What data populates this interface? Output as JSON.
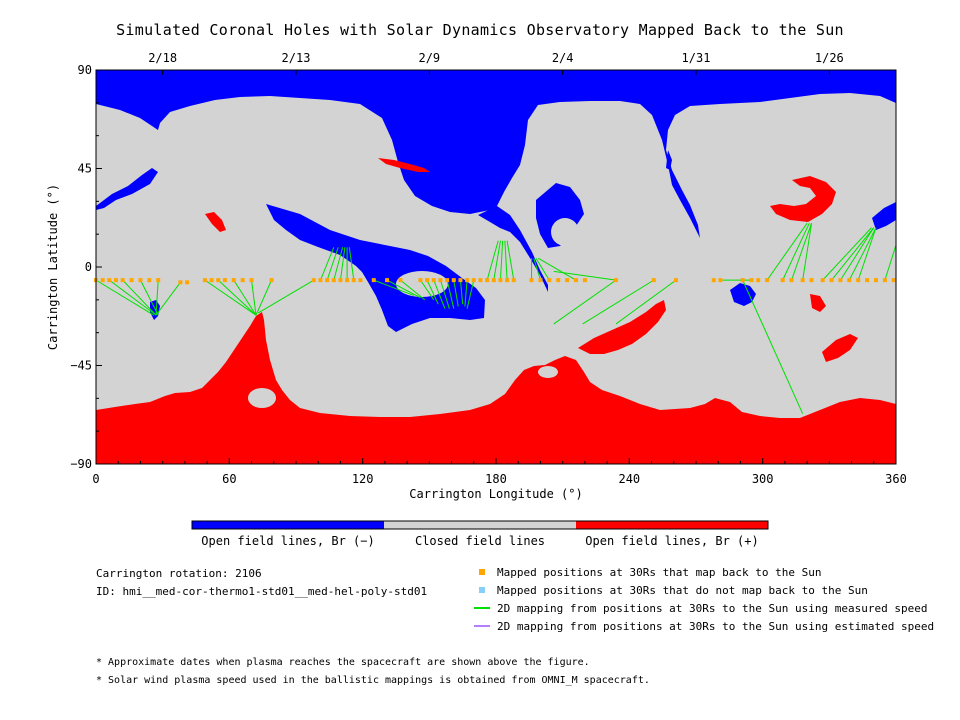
{
  "title": "Simulated Coronal Holes with Solar Dynamics Observatory Mapped Back to the Sun",
  "chart_data": {
    "type": "map",
    "xlabel": "Carrington Longitude (°)",
    "ylabel": "Carrington Latitude (°)",
    "xlim": [
      0,
      360
    ],
    "ylim": [
      -90,
      90
    ],
    "x_ticks": [
      "0",
      "60",
      "120",
      "180",
      "240",
      "300",
      "360"
    ],
    "y_ticks": [
      "90",
      "45",
      "0",
      "−45",
      "−90"
    ],
    "top_dates": [
      {
        "label": "2/18",
        "lon": 30
      },
      {
        "label": "2/13",
        "lon": 90
      },
      {
        "label": "2/9",
        "lon": 150
      },
      {
        "label": "2/4",
        "lon": 210
      },
      {
        "label": "1/31",
        "lon": 270
      },
      {
        "label": "1/26",
        "lon": 330
      }
    ],
    "regions": {
      "north_polar_open_negative": "blue",
      "south_polar_open_positive": "red",
      "closed": "lightgray"
    },
    "mapped_positions": [
      {
        "lon": 0,
        "lat": -6
      },
      {
        "lon": 3,
        "lat": -6
      },
      {
        "lon": 6,
        "lat": -6
      },
      {
        "lon": 9,
        "lat": -6
      },
      {
        "lon": 12,
        "lat": -6
      },
      {
        "lon": 16,
        "lat": -6
      },
      {
        "lon": 20,
        "lat": -6
      },
      {
        "lon": 24,
        "lat": -6
      },
      {
        "lon": 28,
        "lat": -6
      },
      {
        "lon": 38,
        "lat": -7
      },
      {
        "lon": 41,
        "lat": -7
      },
      {
        "lon": 49,
        "lat": -6
      },
      {
        "lon": 52,
        "lat": -6
      },
      {
        "lon": 55,
        "lat": -6
      },
      {
        "lon": 58,
        "lat": -6
      },
      {
        "lon": 62,
        "lat": -6
      },
      {
        "lon": 66,
        "lat": -6
      },
      {
        "lon": 70,
        "lat": -6
      },
      {
        "lon": 79,
        "lat": -6
      },
      {
        "lon": 98,
        "lat": -6
      },
      {
        "lon": 101,
        "lat": -6
      },
      {
        "lon": 104,
        "lat": -6
      },
      {
        "lon": 107,
        "lat": -6
      },
      {
        "lon": 110,
        "lat": -6
      },
      {
        "lon": 113,
        "lat": -6
      },
      {
        "lon": 116,
        "lat": -6
      },
      {
        "lon": 119,
        "lat": -6
      },
      {
        "lon": 125,
        "lat": -6
      },
      {
        "lon": 131,
        "lat": -6
      },
      {
        "lon": 137,
        "lat": -6
      },
      {
        "lon": 146,
        "lat": -6
      },
      {
        "lon": 149,
        "lat": -6
      },
      {
        "lon": 152,
        "lat": -6
      },
      {
        "lon": 155,
        "lat": -6
      },
      {
        "lon": 158,
        "lat": -6
      },
      {
        "lon": 161,
        "lat": -6
      },
      {
        "lon": 164,
        "lat": -6
      },
      {
        "lon": 167,
        "lat": -6
      },
      {
        "lon": 170,
        "lat": -6
      },
      {
        "lon": 173,
        "lat": -6
      },
      {
        "lon": 176,
        "lat": -6
      },
      {
        "lon": 179,
        "lat": -6
      },
      {
        "lon": 182,
        "lat": -6
      },
      {
        "lon": 185,
        "lat": -6
      },
      {
        "lon": 188,
        "lat": -6
      },
      {
        "lon": 196,
        "lat": -6
      },
      {
        "lon": 200,
        "lat": -6
      },
      {
        "lon": 204,
        "lat": -6
      },
      {
        "lon": 208,
        "lat": -6
      },
      {
        "lon": 212,
        "lat": -6
      },
      {
        "lon": 216,
        "lat": -6
      },
      {
        "lon": 220,
        "lat": -6
      },
      {
        "lon": 234,
        "lat": -6
      },
      {
        "lon": 251,
        "lat": -6
      },
      {
        "lon": 261,
        "lat": -6
      },
      {
        "lon": 278,
        "lat": -6
      },
      {
        "lon": 281,
        "lat": -6
      },
      {
        "lon": 291,
        "lat": -6
      },
      {
        "lon": 295,
        "lat": -6
      },
      {
        "lon": 298,
        "lat": -6
      },
      {
        "lon": 302,
        "lat": -6
      },
      {
        "lon": 309,
        "lat": -6
      },
      {
        "lon": 313,
        "lat": -6
      },
      {
        "lon": 318,
        "lat": -6
      },
      {
        "lon": 322,
        "lat": -6
      },
      {
        "lon": 327,
        "lat": -6
      },
      {
        "lon": 331,
        "lat": -6
      },
      {
        "lon": 335,
        "lat": -6
      },
      {
        "lon": 339,
        "lat": -6
      },
      {
        "lon": 343,
        "lat": -6
      },
      {
        "lon": 347,
        "lat": -6
      },
      {
        "lon": 351,
        "lat": -6
      },
      {
        "lon": 355,
        "lat": -6
      },
      {
        "lon": 359,
        "lat": -6
      }
    ],
    "mapping_lines": [
      {
        "from": [
          0,
          -6
        ],
        "to": [
          26,
          -22
        ]
      },
      {
        "from": [
          6,
          -6
        ],
        "to": [
          27,
          -22
        ]
      },
      {
        "from": [
          12,
          -6
        ],
        "to": [
          27,
          -22
        ]
      },
      {
        "from": [
          20,
          -6
        ],
        "to": [
          28,
          -22
        ]
      },
      {
        "from": [
          28,
          -6
        ],
        "to": [
          27,
          -22
        ]
      },
      {
        "from": [
          38,
          -7
        ],
        "to": [
          27,
          -22
        ]
      },
      {
        "from": [
          49,
          -6
        ],
        "to": [
          72,
          -22
        ]
      },
      {
        "from": [
          55,
          -6
        ],
        "to": [
          72,
          -22
        ]
      },
      {
        "from": [
          62,
          -6
        ],
        "to": [
          72,
          -22
        ]
      },
      {
        "from": [
          70,
          -6
        ],
        "to": [
          72,
          -22
        ]
      },
      {
        "from": [
          79,
          -6
        ],
        "to": [
          72,
          -22
        ]
      },
      {
        "from": [
          98,
          -6
        ],
        "to": [
          73,
          -21
        ]
      },
      {
        "from": [
          101,
          -6
        ],
        "to": [
          107,
          9
        ]
      },
      {
        "from": [
          104,
          -6
        ],
        "to": [
          109,
          9
        ]
      },
      {
        "from": [
          107,
          -6
        ],
        "to": [
          111,
          9
        ]
      },
      {
        "from": [
          110,
          -6
        ],
        "to": [
          112,
          9
        ]
      },
      {
        "from": [
          113,
          -6
        ],
        "to": [
          113,
          9
        ]
      },
      {
        "from": [
          116,
          -6
        ],
        "to": [
          114,
          9
        ]
      },
      {
        "from": [
          125,
          -6
        ],
        "to": [
          143,
          -13
        ]
      },
      {
        "from": [
          131,
          -6
        ],
        "to": [
          146,
          -14
        ]
      },
      {
        "from": [
          137,
          -6
        ],
        "to": [
          148,
          -15
        ]
      },
      {
        "from": [
          146,
          -6
        ],
        "to": [
          152,
          -15
        ]
      },
      {
        "from": [
          149,
          -6
        ],
        "to": [
          154,
          -17
        ]
      },
      {
        "from": [
          152,
          -6
        ],
        "to": [
          157,
          -19
        ]
      },
      {
        "from": [
          155,
          -6
        ],
        "to": [
          159,
          -19
        ]
      },
      {
        "from": [
          158,
          -6
        ],
        "to": [
          161,
          -19
        ]
      },
      {
        "from": [
          161,
          -6
        ],
        "to": [
          163,
          -18
        ]
      },
      {
        "from": [
          164,
          -6
        ],
        "to": [
          165,
          -17
        ]
      },
      {
        "from": [
          167,
          -6
        ],
        "to": [
          166,
          -18
        ]
      },
      {
        "from": [
          170,
          -6
        ],
        "to": [
          167,
          -19
        ]
      },
      {
        "from": [
          176,
          -6
        ],
        "to": [
          181,
          12
        ]
      },
      {
        "from": [
          179,
          -6
        ],
        "to": [
          182,
          12
        ]
      },
      {
        "from": [
          182,
          -6
        ],
        "to": [
          183,
          12
        ]
      },
      {
        "from": [
          185,
          -6
        ],
        "to": [
          184,
          12
        ]
      },
      {
        "from": [
          188,
          -6
        ],
        "to": [
          185,
          12
        ]
      },
      {
        "from": [
          196,
          -6
        ],
        "to": [
          196,
          4
        ]
      },
      {
        "from": [
          200,
          -6
        ],
        "to": [
          197,
          4
        ]
      },
      {
        "from": [
          204,
          -6
        ],
        "to": [
          198,
          4
        ]
      },
      {
        "from": [
          216,
          -6
        ],
        "to": [
          199,
          4
        ]
      },
      {
        "from": [
          234,
          -6
        ],
        "to": [
          206,
          -2
        ]
      },
      {
        "from": [
          251,
          -6
        ],
        "to": [
          219,
          -26
        ]
      },
      {
        "from": [
          261,
          -6
        ],
        "to": [
          234,
          -26
        ]
      },
      {
        "from": [
          234,
          -6
        ],
        "to": [
          206,
          -26
        ]
      },
      {
        "from": [
          291,
          -6
        ],
        "to": [
          318,
          -67
        ]
      },
      {
        "from": [
          295,
          -6
        ],
        "to": [
          282,
          -6
        ]
      },
      {
        "from": [
          302,
          -6
        ],
        "to": [
          320,
          20
        ]
      },
      {
        "from": [
          309,
          -6
        ],
        "to": [
          321,
          20
        ]
      },
      {
        "from": [
          313,
          -6
        ],
        "to": [
          322,
          20
        ]
      },
      {
        "from": [
          318,
          -6
        ],
        "to": [
          322,
          20
        ]
      },
      {
        "from": [
          327,
          -6
        ],
        "to": [
          349,
          18
        ]
      },
      {
        "from": [
          331,
          -6
        ],
        "to": [
          350,
          18
        ]
      },
      {
        "from": [
          335,
          -6
        ],
        "to": [
          350,
          18
        ]
      },
      {
        "from": [
          339,
          -6
        ],
        "to": [
          351,
          18
        ]
      },
      {
        "from": [
          343,
          -6
        ],
        "to": [
          351,
          18
        ]
      },
      {
        "from": [
          355,
          -6
        ],
        "to": [
          360,
          10
        ]
      }
    ]
  },
  "colorbar": {
    "colors": [
      "#0000ff",
      "#d3d3d3",
      "#ff0000"
    ],
    "labels": [
      "Open field lines, Br (−)",
      "Closed field lines",
      "Open field lines, Br (+)"
    ]
  },
  "info": {
    "rotation": "Carrington rotation: 2106",
    "id": "ID: hmi__med-cor-thermo1-std01__med-hel-poly-std01"
  },
  "legend": [
    {
      "kind": "square",
      "color": "#ffa500",
      "text": "Mapped positions at 30Rs that map back to the Sun"
    },
    {
      "kind": "square",
      "color": "#87cefa",
      "text": "Mapped positions at 30Rs that do not map back to the Sun"
    },
    {
      "kind": "line",
      "color": "#00e000",
      "text": "2D mapping from positions at 30Rs to the Sun using measured speed"
    },
    {
      "kind": "line",
      "color": "#b27fff",
      "text": "2D mapping from positions at 30Rs to the Sun using estimated speed"
    }
  ],
  "notes": [
    "* Approximate dates when plasma reaches the spacecraft are shown above the figure.",
    "* Solar wind plasma speed used in the ballistic mappings is obtained from OMNI_M spacecraft."
  ]
}
